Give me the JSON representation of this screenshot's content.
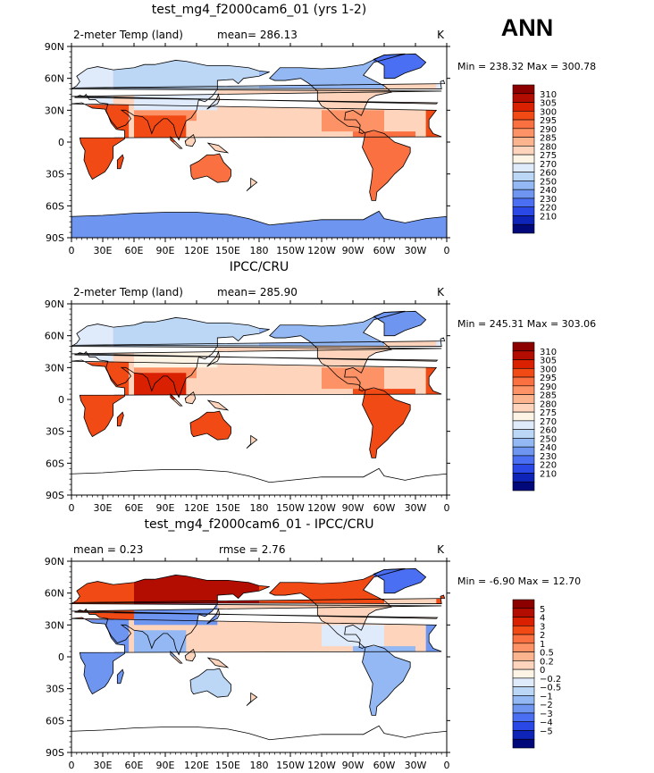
{
  "season": "ANN",
  "chart_data": [
    {
      "type": "heatmap",
      "title": "test_mg4_f2000cam6_01 (yrs 1-2)",
      "left_label": "2-meter Temp (land)",
      "stat_text": "mean= 286.13",
      "units": "K",
      "minmax_text": "Min = 238.32 Max = 300.78",
      "xticks": [
        "0",
        "30E",
        "60E",
        "90E",
        "120E",
        "150E",
        "180",
        "150W",
        "120W",
        "90W",
        "60W",
        "30W",
        "0"
      ],
      "yticks": [
        "90N",
        "60N",
        "30N",
        "0",
        "30S",
        "60S",
        "90S"
      ],
      "xlim": [
        0,
        360
      ],
      "ylim": [
        -90,
        90
      ],
      "colorbar": {
        "levels": [
          "310",
          "305",
          "300",
          "295",
          "290",
          "285",
          "280",
          "275",
          "270",
          "260",
          "250",
          "240",
          "230",
          "220",
          "210"
        ],
        "colors": [
          "#8c0000",
          "#b30c00",
          "#d92000",
          "#f24a15",
          "#fa7040",
          "#fc9265",
          "#fcb48e",
          "#fed5bc",
          "#fdf4e6",
          "#dfeafb",
          "#bcd6f6",
          "#93b8f4",
          "#6e96f0",
          "#4a6ff2",
          "#2a48e6",
          "#0e23b8",
          "#00087a"
        ]
      }
    },
    {
      "type": "heatmap",
      "title": "IPCC/CRU",
      "left_label": "2-meter Temp (land)",
      "stat_text": "mean= 285.90",
      "units": "K",
      "minmax_text": "Min = 245.31 Max = 303.06",
      "xticks": [
        "0",
        "30E",
        "60E",
        "90E",
        "120E",
        "150E",
        "180",
        "150W",
        "120W",
        "90W",
        "60W",
        "30W",
        "0"
      ],
      "yticks": [
        "90N",
        "60N",
        "30N",
        "0",
        "30S",
        "60S",
        "90S"
      ],
      "xlim": [
        0,
        360
      ],
      "ylim": [
        -90,
        90
      ],
      "colorbar": {
        "levels": [
          "310",
          "305",
          "300",
          "295",
          "290",
          "285",
          "280",
          "275",
          "270",
          "260",
          "250",
          "240",
          "230",
          "220",
          "210"
        ],
        "colors": [
          "#8c0000",
          "#b30c00",
          "#d92000",
          "#f24a15",
          "#fa7040",
          "#fc9265",
          "#fcb48e",
          "#fed5bc",
          "#fdf4e6",
          "#dfeafb",
          "#bcd6f6",
          "#93b8f4",
          "#6e96f0",
          "#4a6ff2",
          "#2a48e6",
          "#0e23b8",
          "#00087a"
        ]
      }
    },
    {
      "type": "heatmap",
      "title": "test_mg4_f2000cam6_01 - IPCC/CRU",
      "left_label": "mean =    0.23",
      "stat_text": "rmse =    2.76",
      "units": "K",
      "minmax_text": "Min =  -6.90 Max =  12.70",
      "xticks": [
        "0",
        "30E",
        "60E",
        "90E",
        "120E",
        "150E",
        "180",
        "150W",
        "120W",
        "90W",
        "60W",
        "30W",
        "0"
      ],
      "yticks": [
        "90N",
        "60N",
        "30N",
        "0",
        "30S",
        "60S",
        "90S"
      ],
      "xlim": [
        0,
        360
      ],
      "ylim": [
        -90,
        90
      ],
      "colorbar": {
        "levels": [
          "5",
          "4",
          "3",
          "2",
          "1",
          "0.5",
          "0.2",
          "0",
          "−0.2",
          "−0.5",
          "−1",
          "−2",
          "−3",
          "−4",
          "−5"
        ],
        "colors": [
          "#8c0000",
          "#b30c00",
          "#d92000",
          "#f24a15",
          "#fa7040",
          "#fc9265",
          "#fcb48e",
          "#fed5bc",
          "#fdf4e6",
          "#dfeafb",
          "#bcd6f6",
          "#93b8f4",
          "#6e96f0",
          "#4a6ff2",
          "#2a48e6",
          "#0e23b8",
          "#00087a"
        ]
      }
    }
  ]
}
